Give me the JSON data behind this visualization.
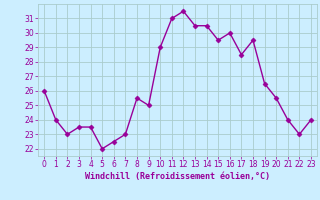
{
  "x": [
    0,
    1,
    2,
    3,
    4,
    5,
    6,
    7,
    8,
    9,
    10,
    11,
    12,
    13,
    14,
    15,
    16,
    17,
    18,
    19,
    20,
    21,
    22,
    23
  ],
  "y": [
    26,
    24,
    23,
    23.5,
    23.5,
    22,
    22.5,
    23,
    25.5,
    25,
    29,
    31,
    31.5,
    30.5,
    30.5,
    29.5,
    30,
    28.5,
    29.5,
    26.5,
    25.5,
    24,
    23,
    24
  ],
  "line_color": "#990099",
  "marker_color": "#990099",
  "bg_color": "#cceeff",
  "grid_color": "#aacccc",
  "xlabel": "Windchill (Refroidissement éolien,°C)",
  "ylim": [
    21.5,
    32
  ],
  "xlim": [
    -0.5,
    23.5
  ],
  "yticks": [
    22,
    23,
    24,
    25,
    26,
    27,
    28,
    29,
    30,
    31
  ],
  "xticks": [
    0,
    1,
    2,
    3,
    4,
    5,
    6,
    7,
    8,
    9,
    10,
    11,
    12,
    13,
    14,
    15,
    16,
    17,
    18,
    19,
    20,
    21,
    22,
    23
  ],
  "label_fontsize": 6,
  "tick_fontsize": 5.5,
  "line_width": 1.0,
  "marker_size": 2.5
}
